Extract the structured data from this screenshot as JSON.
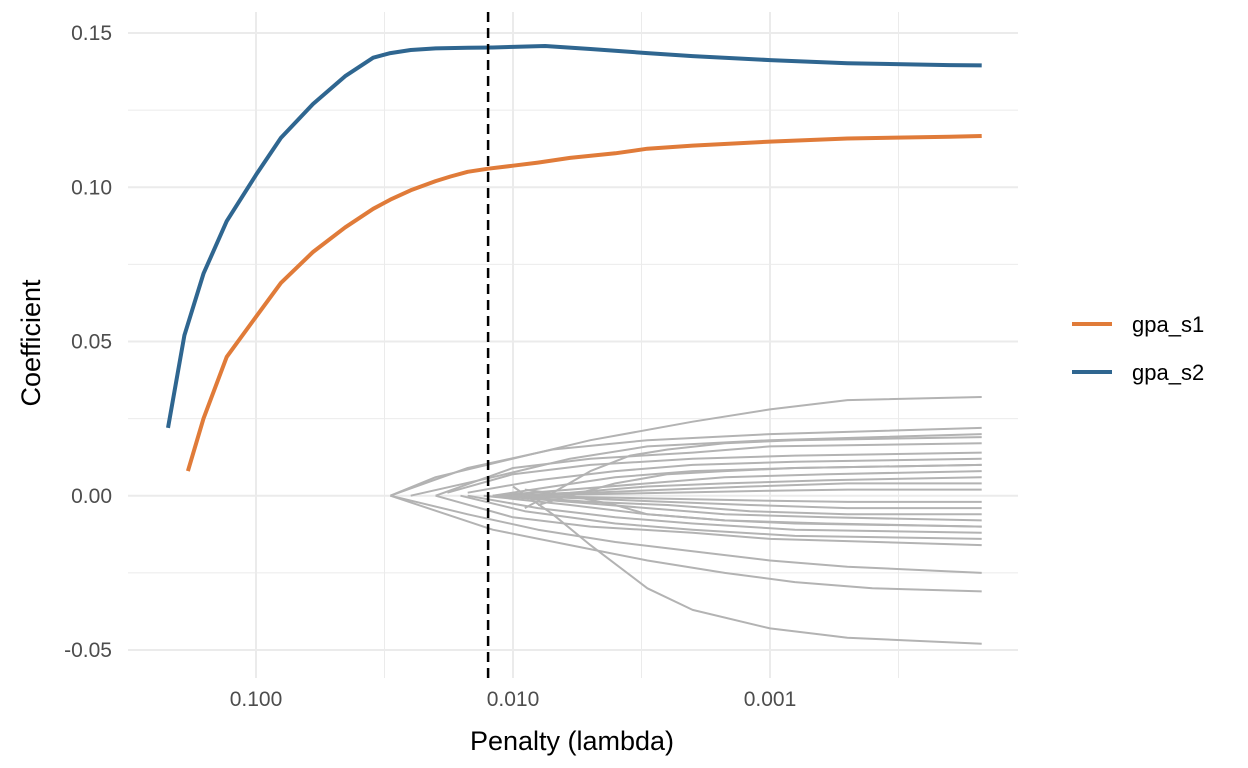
{
  "chart_data": {
    "type": "line",
    "title": "",
    "xlabel": "Penalty (lambda)",
    "ylabel": "Coefficient",
    "x_scale": "log10-reversed",
    "xlim": [
      0.2,
      0.00015
    ],
    "ylim": [
      -0.055,
      0.155
    ],
    "x_ticks": [
      {
        "value": 0.1,
        "label": "0.100"
      },
      {
        "value": 0.01,
        "label": "0.010"
      },
      {
        "value": 0.001,
        "label": "0.001"
      }
    ],
    "y_ticks": [
      {
        "value": 0.15,
        "label": "0.15"
      },
      {
        "value": 0.1,
        "label": "0.10"
      },
      {
        "value": 0.05,
        "label": "0.05"
      },
      {
        "value": 0.0,
        "label": "0.00"
      },
      {
        "value": -0.05,
        "label": "-0.05"
      }
    ],
    "grid": true,
    "legend_position": "right",
    "vline": {
      "x": 0.0125,
      "style": "dashed",
      "color": "#000000"
    },
    "series": [
      {
        "name": "gpa_s1",
        "color": "#E07B39",
        "x": [
          0.184,
          0.16,
          0.13,
          0.1,
          0.08,
          0.06,
          0.045,
          0.035,
          0.03,
          0.025,
          0.02,
          0.0175,
          0.015,
          0.0125,
          0.01,
          0.008,
          0.006,
          0.004,
          0.003,
          0.002,
          0.001,
          0.0005,
          0.0002,
          0.00015
        ],
        "y": [
          0.008,
          0.025,
          0.045,
          0.058,
          0.069,
          0.079,
          0.087,
          0.093,
          0.096,
          0.099,
          0.102,
          0.1035,
          0.105,
          0.106,
          0.107,
          0.108,
          0.1095,
          0.111,
          0.1125,
          0.1135,
          0.1148,
          0.1158,
          0.1164,
          0.1166
        ]
      },
      {
        "name": "gpa_s2",
        "color": "#2F6690",
        "x": [
          0.22,
          0.19,
          0.16,
          0.13,
          0.1,
          0.08,
          0.06,
          0.045,
          0.035,
          0.03,
          0.025,
          0.02,
          0.015,
          0.012,
          0.01,
          0.0075,
          0.005,
          0.003,
          0.002,
          0.001,
          0.0005,
          0.0002,
          0.00015
        ],
        "y": [
          0.022,
          0.052,
          0.072,
          0.089,
          0.104,
          0.116,
          0.127,
          0.136,
          0.142,
          0.1435,
          0.1445,
          0.145,
          0.1452,
          0.1453,
          0.1455,
          0.1458,
          0.1448,
          0.1435,
          0.1425,
          0.1412,
          0.1402,
          0.1396,
          0.1395
        ]
      }
    ],
    "background_series_color": "#b3b3b3",
    "background_series": [
      {
        "x": [
          0.03,
          0.02,
          0.01,
          0.005,
          0.002,
          0.001,
          0.0005,
          0.00015
        ],
        "y": [
          0.0,
          0.006,
          0.012,
          0.018,
          0.024,
          0.028,
          0.031,
          0.032
        ]
      },
      {
        "x": [
          0.03,
          0.015,
          0.007,
          0.003,
          0.001,
          0.00015
        ],
        "y": [
          0.0,
          0.009,
          0.015,
          0.018,
          0.02,
          0.022
        ]
      },
      {
        "x": [
          0.025,
          0.012,
          0.006,
          0.003,
          0.001,
          0.00015
        ],
        "y": [
          0.0,
          0.006,
          0.012,
          0.016,
          0.018,
          0.02
        ]
      },
      {
        "x": [
          0.02,
          0.01,
          0.005,
          0.002,
          0.001,
          0.00015
        ],
        "y": [
          0.0,
          0.009,
          0.012,
          0.014,
          0.016,
          0.017
        ]
      },
      {
        "x": [
          0.018,
          0.01,
          0.005,
          0.002,
          0.0008,
          0.00015
        ],
        "y": [
          0.001,
          0.007,
          0.01,
          0.012,
          0.013,
          0.014
        ]
      },
      {
        "x": [
          0.015,
          0.008,
          0.004,
          0.002,
          0.0008,
          0.00015
        ],
        "y": [
          0.001,
          0.005,
          0.008,
          0.01,
          0.011,
          0.012
        ]
      },
      {
        "x": [
          0.012,
          0.007,
          0.004,
          0.002,
          0.0008,
          0.00015
        ],
        "y": [
          0.0,
          0.003,
          0.006,
          0.008,
          0.009,
          0.01
        ]
      },
      {
        "x": [
          0.012,
          0.006,
          0.003,
          0.0015,
          0.0006,
          0.00015
        ],
        "y": [
          0.0,
          0.002,
          0.004,
          0.006,
          0.007,
          0.008
        ]
      },
      {
        "x": [
          0.011,
          0.006,
          0.003,
          0.0015,
          0.0006,
          0.00015
        ],
        "y": [
          0.0,
          0.001,
          0.003,
          0.004,
          0.005,
          0.006
        ]
      },
      {
        "x": [
          0.011,
          0.005,
          0.0025,
          0.0012,
          0.0005,
          0.00015
        ],
        "y": [
          0.0,
          0.001,
          0.002,
          0.003,
          0.004,
          0.004
        ]
      },
      {
        "x": [
          0.01,
          0.005,
          0.0025,
          0.0012,
          0.0005,
          0.00015
        ],
        "y": [
          0.0,
          0.0005,
          0.001,
          0.0015,
          0.002,
          0.002
        ]
      },
      {
        "x": [
          0.01,
          0.005,
          0.0025,
          0.0012,
          0.0005,
          0.00015
        ],
        "y": [
          0.0,
          -0.0005,
          -0.001,
          -0.0015,
          -0.002,
          -0.002
        ]
      },
      {
        "x": [
          0.01,
          0.005,
          0.0025,
          0.0012,
          0.0005,
          0.00015
        ],
        "y": [
          0.0,
          -0.001,
          -0.002,
          -0.003,
          -0.004,
          -0.004
        ]
      },
      {
        "x": [
          0.011,
          0.005,
          0.0025,
          0.0012,
          0.0005,
          0.00015
        ],
        "y": [
          0.0,
          -0.002,
          -0.003,
          -0.005,
          -0.006,
          -0.006
        ]
      },
      {
        "x": [
          0.012,
          0.006,
          0.003,
          0.0015,
          0.0006,
          0.00015
        ],
        "y": [
          0.0,
          -0.002,
          -0.004,
          -0.006,
          -0.007,
          -0.008
        ]
      },
      {
        "x": [
          0.013,
          0.006,
          0.003,
          0.0015,
          0.0006,
          0.00015
        ],
        "y": [
          0.0,
          -0.003,
          -0.006,
          -0.008,
          -0.009,
          -0.01
        ]
      },
      {
        "x": [
          0.015,
          0.008,
          0.004,
          0.002,
          0.0008,
          0.00015
        ],
        "y": [
          0.0,
          -0.004,
          -0.007,
          -0.009,
          -0.011,
          -0.012
        ]
      },
      {
        "x": [
          0.016,
          0.009,
          0.004,
          0.002,
          0.0008,
          0.00015
        ],
        "y": [
          0.0,
          -0.005,
          -0.009,
          -0.011,
          -0.013,
          -0.014
        ]
      },
      {
        "x": [
          0.02,
          0.01,
          0.005,
          0.002,
          0.001,
          0.00015
        ],
        "y": [
          0.0,
          -0.007,
          -0.01,
          -0.012,
          -0.014,
          -0.016
        ]
      },
      {
        "x": [
          0.03,
          0.015,
          0.008,
          0.004,
          0.002,
          0.001,
          0.0005,
          0.00015
        ],
        "y": [
          0.0,
          -0.006,
          -0.011,
          -0.015,
          -0.018,
          -0.021,
          -0.023,
          -0.025
        ]
      },
      {
        "x": [
          0.03,
          0.012,
          0.006,
          0.003,
          0.0015,
          0.0008,
          0.0004,
          0.00015
        ],
        "y": [
          0.0,
          -0.011,
          -0.016,
          -0.021,
          -0.025,
          -0.028,
          -0.03,
          -0.031
        ]
      },
      {
        "x": [
          0.01,
          0.007,
          0.005,
          0.003,
          0.002,
          0.001,
          0.0005,
          0.00015
        ],
        "y": [
          0.003,
          -0.006,
          -0.016,
          -0.03,
          -0.037,
          -0.043,
          -0.046,
          -0.048
        ]
      },
      {
        "x": [
          0.009,
          0.007,
          0.005,
          0.0035,
          0.0025,
          0.0015,
          0.0008,
          0.00015
        ],
        "y": [
          -0.004,
          0.001,
          0.008,
          0.013,
          0.015,
          0.017,
          0.018,
          0.019
        ]
      },
      {
        "x": [
          0.008,
          0.006,
          0.004,
          0.0025,
          0.0015,
          0.0008,
          0.00015
        ],
        "y": [
          -0.003,
          0.0,
          0.004,
          0.007,
          0.008,
          0.009,
          0.01
        ]
      },
      {
        "x": [
          0.009,
          0.006,
          0.004,
          0.003,
          0.0015,
          0.0008,
          0.00015
        ],
        "y": [
          0.002,
          0.0,
          -0.003,
          -0.006,
          -0.008,
          -0.009,
          -0.01
        ]
      }
    ]
  }
}
